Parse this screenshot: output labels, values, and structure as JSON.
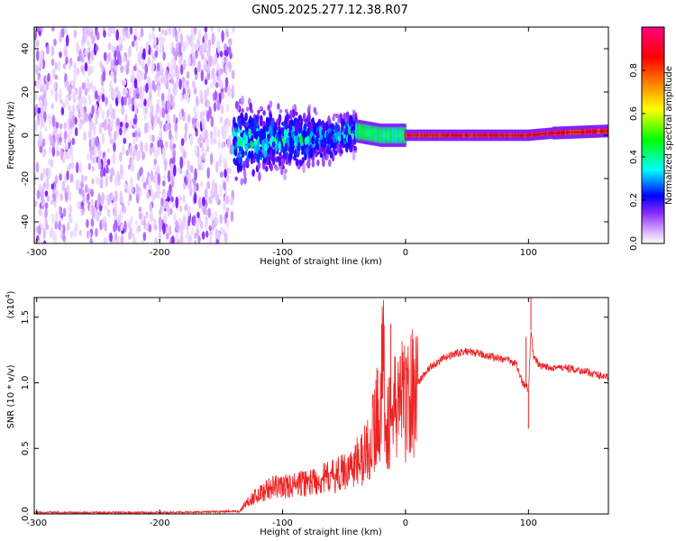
{
  "figure_title": "GN05.2025.277.12.38.R07",
  "chart_data": [
    {
      "type": "heatmap",
      "title": "GN05.2025.277.12.38.R07",
      "xlabel": "Height of straight line (km)",
      "ylabel": "Frequency (Hz)",
      "xlim": [
        -302,
        165
      ],
      "ylim": [
        -50,
        50
      ],
      "xticks": [
        -300,
        -200,
        -100,
        0,
        100
      ],
      "yticks": [
        -40,
        -20,
        0,
        20,
        40
      ],
      "xtick_labels": [
        "-300",
        "-200",
        "-100",
        "0",
        "100"
      ],
      "ytick_labels": [
        "-40",
        "-20",
        "0",
        "20",
        "40"
      ],
      "grid": false,
      "colorbar": {
        "label": "Normalized spectral amplitude",
        "range": [
          0,
          1
        ],
        "ticks": [
          0.0,
          0.2,
          0.4,
          0.6,
          0.8
        ],
        "tick_labels": [
          "0.0",
          "0.2",
          "0.4",
          "0.6",
          "0.8"
        ],
        "colormap": [
          "#ffffff",
          "#d6a8ff",
          "#6a00ff",
          "#0000ff",
          "#00ffff",
          "#00ff00",
          "#ffff00",
          "#ff8000",
          "#ff0000",
          "#ff0080"
        ]
      },
      "regions": [
        {
          "x_range": [
            -302,
            -140
          ],
          "description_level": 0.15,
          "freq_spread": [
            -50,
            50
          ]
        },
        {
          "x_range": [
            -140,
            -40
          ],
          "description_level": 0.3,
          "freq_spread": [
            -20,
            20
          ]
        },
        {
          "x_range": [
            -40,
            0
          ],
          "description_level": 0.55,
          "freq_spread": [
            -4,
            4
          ]
        },
        {
          "x_range": [
            0,
            120
          ],
          "description_level": 0.95,
          "freq_spread": [
            -1,
            1
          ]
        },
        {
          "x_range": [
            120,
            165
          ],
          "description_level": 0.95,
          "freq_spread": [
            0,
            3
          ]
        }
      ],
      "ridge_frequency": [
        {
          "x": -140,
          "y": -3
        },
        {
          "x": -100,
          "y": -2
        },
        {
          "x": -60,
          "y": -1
        },
        {
          "x": -40,
          "y": 2
        },
        {
          "x": -20,
          "y": 0
        },
        {
          "x": 0,
          "y": 0
        },
        {
          "x": 60,
          "y": 0
        },
        {
          "x": 100,
          "y": 0
        },
        {
          "x": 120,
          "y": 1
        },
        {
          "x": 165,
          "y": 2
        }
      ]
    },
    {
      "type": "line",
      "xlabel": "Height of straight line (km)",
      "ylabel": "SNR (10 * v/v)",
      "y_multiplier_label": "(x10",
      "y_multiplier_exp": "4",
      "y_multiplier_close": ")",
      "xlim": [
        -302,
        165
      ],
      "ylim": [
        0,
        1.65
      ],
      "xticks": [
        -300,
        -200,
        -100,
        0,
        100
      ],
      "yticks": [
        0.0,
        0.5,
        1.0,
        1.5
      ],
      "xtick_labels": [
        "-300",
        "-200",
        "-100",
        "0",
        "100"
      ],
      "ytick_labels": [
        "0.0",
        "0.5",
        "1.0",
        "1.5"
      ],
      "grid": false,
      "series": [
        {
          "color": "#ee2222",
          "x": [
            -302,
            -200,
            -135,
            -130,
            -125,
            -110,
            -90,
            -70,
            -55,
            -45,
            -35,
            -28,
            -22,
            -18,
            -15,
            -10,
            -5,
            0,
            10,
            20,
            30,
            40,
            50,
            60,
            70,
            80,
            90,
            95,
            100,
            102,
            104,
            110,
            120,
            140,
            165
          ],
          "y": [
            0.01,
            0.01,
            0.02,
            0.08,
            0.12,
            0.2,
            0.22,
            0.26,
            0.3,
            0.35,
            0.42,
            0.55,
            0.8,
            1.1,
            0.7,
            0.75,
            0.9,
            0.85,
            1.0,
            1.12,
            1.18,
            1.22,
            1.24,
            1.22,
            1.2,
            1.18,
            1.15,
            1.0,
            0.95,
            1.4,
            1.2,
            1.12,
            1.12,
            1.1,
            1.04
          ]
        }
      ],
      "spikes": [
        {
          "x": -18,
          "y": 1.5
        },
        {
          "x": -12,
          "y": 1.45
        },
        {
          "x": 98,
          "y": 1.35
        },
        {
          "x": 102,
          "y": 1.65
        },
        {
          "x": 100,
          "y": 0.65
        }
      ]
    }
  ]
}
